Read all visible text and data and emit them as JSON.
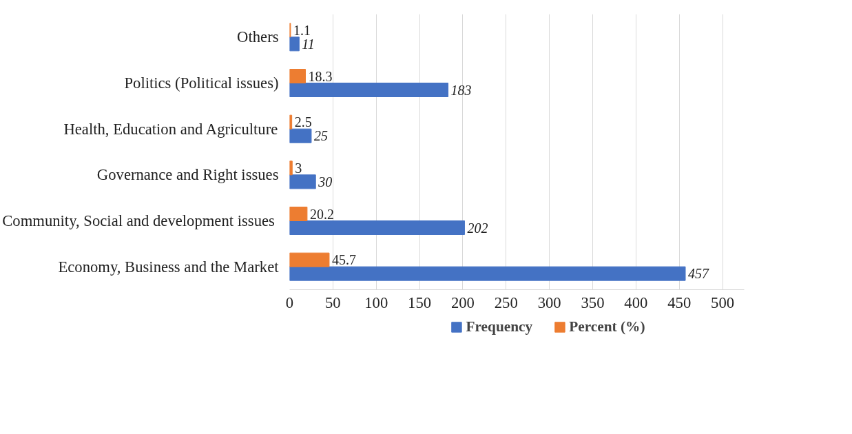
{
  "chart_data": {
    "type": "bar",
    "orientation": "horizontal",
    "categories": [
      "Others",
      "Politics (Political issues)",
      "Health, Education and Agriculture",
      "Governance and Right issues",
      "Community, Social and development  issues",
      "Economy, Business and the Market"
    ],
    "series": [
      {
        "name": "Frequency",
        "color": "#4472c4",
        "values": [
          11,
          183,
          25,
          30,
          202,
          457
        ]
      },
      {
        "name": "Percent (%)",
        "color": "#ed7d31",
        "values": [
          1.1,
          18.3,
          2.5,
          3,
          20.2,
          45.7
        ]
      }
    ],
    "xlim": [
      0,
      525
    ],
    "xticks": [
      0,
      50,
      100,
      150,
      200,
      250,
      300,
      350,
      400,
      450,
      500
    ],
    "grid": "x",
    "legend": "bottom",
    "data_labels": true
  }
}
